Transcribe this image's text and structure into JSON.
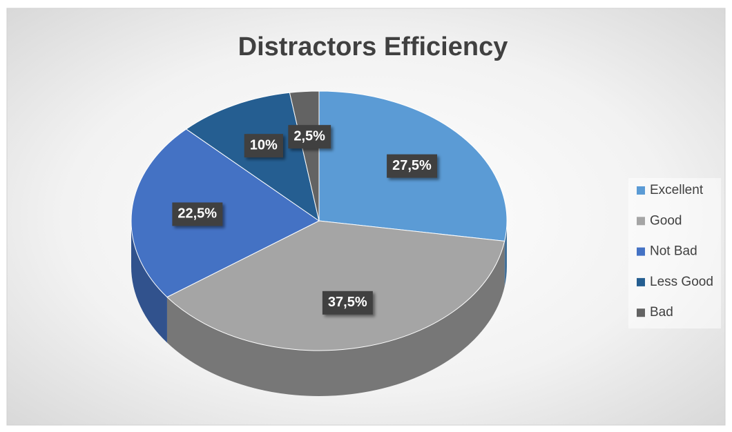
{
  "chart_data": {
    "type": "pie",
    "title": "Distractors Efficiency",
    "categories": [
      "Excellent",
      "Good",
      "Not Bad",
      "Less Good",
      "Bad"
    ],
    "values": [
      27.5,
      37.5,
      22.5,
      10,
      2.5
    ],
    "value_labels": [
      "27,5%",
      "37,5%",
      "22,5%",
      "10%",
      "2,5%"
    ],
    "colors": [
      "#5b9bd5",
      "#a5a5a5",
      "#4472c4",
      "#255e91",
      "#636363"
    ],
    "legend": "right"
  }
}
